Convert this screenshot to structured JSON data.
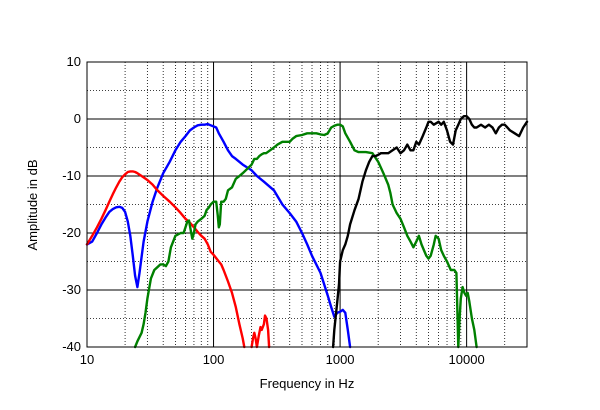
{
  "chart_data": {
    "type": "line",
    "title": "",
    "xlabel": "Frequency  in Hz",
    "ylabel": "Amplitude in dB",
    "x_scale": "log",
    "xlim": [
      10,
      30000
    ],
    "ylim": [
      -40,
      10
    ],
    "x_ticks": [
      10,
      100,
      1000,
      10000
    ],
    "x_tick_labels": [
      "10",
      "100",
      "1000",
      "10000"
    ],
    "y_ticks": [
      10,
      0,
      -10,
      -20,
      -30,
      -40
    ],
    "y_tick_labels": [
      "10",
      "0",
      "-10",
      "-20",
      "-30",
      "-40"
    ],
    "grid": true,
    "legend": "none",
    "series": [
      {
        "color": "#0000ff",
        "points": [
          [
            10,
            -22
          ],
          [
            11,
            -21.5
          ],
          [
            12,
            -20
          ],
          [
            13,
            -18.5
          ],
          [
            14,
            -17.3
          ],
          [
            15,
            -16.3
          ],
          [
            16,
            -15.8
          ],
          [
            17,
            -15.5
          ],
          [
            18,
            -15.4
          ],
          [
            19,
            -15.6
          ],
          [
            20,
            -16.3
          ],
          [
            21,
            -18
          ],
          [
            22,
            -20.5
          ],
          [
            23,
            -24
          ],
          [
            24,
            -27.5
          ],
          [
            25,
            -29.5
          ],
          [
            26,
            -27
          ],
          [
            28,
            -21.5
          ],
          [
            30,
            -18
          ],
          [
            33,
            -14.5
          ],
          [
            36,
            -12
          ],
          [
            40,
            -9.5
          ],
          [
            45,
            -7.5
          ],
          [
            50,
            -5.5
          ],
          [
            55,
            -4
          ],
          [
            60,
            -3
          ],
          [
            65,
            -2
          ],
          [
            70,
            -1.5
          ],
          [
            75,
            -1.1
          ],
          [
            80,
            -1
          ],
          [
            85,
            -1
          ],
          [
            90,
            -0.9
          ],
          [
            95,
            -1.1
          ],
          [
            100,
            -1.3
          ],
          [
            105,
            -1.5
          ],
          [
            110,
            -2.5
          ],
          [
            120,
            -4
          ],
          [
            130,
            -5.5
          ],
          [
            140,
            -6.5
          ],
          [
            150,
            -7
          ],
          [
            170,
            -8
          ],
          [
            200,
            -9
          ],
          [
            220,
            -10
          ],
          [
            250,
            -11
          ],
          [
            300,
            -12.5
          ],
          [
            350,
            -15
          ],
          [
            400,
            -16.5
          ],
          [
            450,
            -18
          ],
          [
            500,
            -20
          ],
          [
            550,
            -22
          ],
          [
            600,
            -24
          ],
          [
            700,
            -27
          ],
          [
            800,
            -31
          ],
          [
            850,
            -33
          ],
          [
            900,
            -34.7
          ],
          [
            950,
            -34
          ],
          [
            1000,
            -33.8
          ],
          [
            1050,
            -33.5
          ],
          [
            1100,
            -34
          ],
          [
            1150,
            -37
          ],
          [
            1200,
            -40
          ]
        ]
      },
      {
        "color": "#ff0000",
        "points": [
          [
            10,
            -22
          ],
          [
            11,
            -20.5
          ],
          [
            12,
            -19
          ],
          [
            13,
            -17.5
          ],
          [
            14,
            -16
          ],
          [
            15,
            -14.5
          ],
          [
            16,
            -13.2
          ],
          [
            17,
            -12
          ],
          [
            18,
            -11
          ],
          [
            19,
            -10.2
          ],
          [
            20,
            -9.7
          ],
          [
            21,
            -9.3
          ],
          [
            22,
            -9.2
          ],
          [
            23,
            -9.2
          ],
          [
            24,
            -9.3
          ],
          [
            25,
            -9.5
          ],
          [
            27,
            -10
          ],
          [
            30,
            -10.7
          ],
          [
            33,
            -11.5
          ],
          [
            36,
            -12.5
          ],
          [
            40,
            -13.5
          ],
          [
            45,
            -14.5
          ],
          [
            50,
            -15.5
          ],
          [
            55,
            -16.5
          ],
          [
            60,
            -17.5
          ],
          [
            65,
            -18.2
          ],
          [
            70,
            -19
          ],
          [
            75,
            -19.8
          ],
          [
            80,
            -20.5
          ],
          [
            85,
            -21
          ],
          [
            90,
            -22
          ],
          [
            95,
            -23.3
          ],
          [
            100,
            -23.8
          ],
          [
            110,
            -25
          ],
          [
            115,
            -25.5
          ],
          [
            120,
            -26.5
          ],
          [
            130,
            -28.5
          ],
          [
            140,
            -30.5
          ],
          [
            150,
            -33
          ],
          [
            160,
            -36
          ],
          [
            170,
            -38.5
          ],
          [
            175,
            -40
          ]
        ]
      },
      {
        "color": "#ff0000",
        "points": [
          [
            200,
            -40
          ],
          [
            205,
            -38.5
          ],
          [
            210,
            -37.5
          ],
          [
            215,
            -38.5
          ],
          [
            220,
            -40
          ],
          [
            228,
            -38
          ],
          [
            235,
            -36.5
          ],
          [
            240,
            -37
          ],
          [
            250,
            -36
          ],
          [
            255,
            -34.5
          ],
          [
            262,
            -35
          ],
          [
            270,
            -37
          ],
          [
            275,
            -40
          ]
        ]
      },
      {
        "color": "#008000",
        "points": [
          [
            24,
            -40
          ],
          [
            25,
            -39
          ],
          [
            27,
            -37.5
          ],
          [
            28,
            -36
          ],
          [
            29,
            -34
          ],
          [
            30,
            -31.5
          ],
          [
            32,
            -28
          ],
          [
            34,
            -26.5
          ],
          [
            36,
            -26
          ],
          [
            38,
            -25.5
          ],
          [
            40,
            -25.5
          ],
          [
            42,
            -25.8
          ],
          [
            44,
            -25
          ],
          [
            46,
            -22.5
          ],
          [
            50,
            -20.5
          ],
          [
            55,
            -20
          ],
          [
            58,
            -20
          ],
          [
            60,
            -19
          ],
          [
            62,
            -18
          ],
          [
            64,
            -17.8
          ],
          [
            66,
            -19.5
          ],
          [
            68,
            -21
          ],
          [
            70,
            -20
          ],
          [
            72,
            -18.5
          ],
          [
            75,
            -18
          ],
          [
            80,
            -17.5
          ],
          [
            85,
            -17
          ],
          [
            88,
            -16
          ],
          [
            92,
            -15.5
          ],
          [
            95,
            -15
          ],
          [
            100,
            -14.5
          ],
          [
            105,
            -14.5
          ],
          [
            108,
            -17
          ],
          [
            110,
            -19
          ],
          [
            112,
            -18.5
          ],
          [
            115,
            -14.5
          ],
          [
            120,
            -14.5
          ],
          [
            125,
            -14
          ],
          [
            130,
            -12.5
          ],
          [
            140,
            -12
          ],
          [
            150,
            -10.5
          ],
          [
            160,
            -10
          ],
          [
            170,
            -9.5
          ],
          [
            180,
            -9
          ],
          [
            190,
            -8.5
          ],
          [
            200,
            -8
          ],
          [
            210,
            -7
          ],
          [
            220,
            -7
          ],
          [
            230,
            -6.5
          ],
          [
            240,
            -6.2
          ],
          [
            250,
            -6
          ],
          [
            260,
            -6
          ],
          [
            280,
            -5.5
          ],
          [
            300,
            -5
          ],
          [
            320,
            -4.5
          ],
          [
            350,
            -4
          ],
          [
            380,
            -4
          ],
          [
            400,
            -4
          ],
          [
            420,
            -3.5
          ],
          [
            450,
            -3
          ],
          [
            500,
            -2.8
          ],
          [
            550,
            -2.5
          ],
          [
            600,
            -2.5
          ],
          [
            650,
            -2.5
          ],
          [
            700,
            -2.7
          ],
          [
            750,
            -2.8
          ],
          [
            800,
            -2.5
          ],
          [
            850,
            -1.5
          ],
          [
            900,
            -1.2
          ],
          [
            950,
            -1
          ],
          [
            1000,
            -1
          ],
          [
            1050,
            -1.3
          ],
          [
            1100,
            -2.5
          ],
          [
            1200,
            -4
          ],
          [
            1300,
            -5.5
          ],
          [
            1400,
            -5.8
          ],
          [
            1500,
            -5.8
          ],
          [
            1600,
            -5.8
          ],
          [
            1800,
            -6
          ],
          [
            2000,
            -7.5
          ],
          [
            2200,
            -9.5
          ],
          [
            2400,
            -11.5
          ],
          [
            2500,
            -13
          ],
          [
            2600,
            -15
          ],
          [
            2800,
            -16.5
          ],
          [
            3000,
            -17.5
          ],
          [
            3200,
            -19
          ],
          [
            3400,
            -20.5
          ],
          [
            3600,
            -21.5
          ],
          [
            3800,
            -22.5
          ],
          [
            4000,
            -21.5
          ],
          [
            4200,
            -20.5
          ],
          [
            4400,
            -22
          ],
          [
            4600,
            -23
          ],
          [
            4800,
            -24
          ],
          [
            5000,
            -24.5
          ],
          [
            5200,
            -24
          ],
          [
            5500,
            -22
          ],
          [
            5700,
            -20.5
          ],
          [
            6000,
            -21
          ],
          [
            6300,
            -23
          ],
          [
            6600,
            -24
          ],
          [
            7000,
            -25
          ],
          [
            7500,
            -26.5
          ],
          [
            8000,
            -26.5
          ],
          [
            8300,
            -27
          ],
          [
            8600,
            -40
          ],
          [
            8800,
            -35
          ],
          [
            9000,
            -31.5
          ],
          [
            9300,
            -29.5
          ],
          [
            9600,
            -30.5
          ],
          [
            9900,
            -31
          ],
          [
            10200,
            -30.5
          ],
          [
            10500,
            -32
          ],
          [
            11000,
            -35
          ],
          [
            11500,
            -37
          ],
          [
            12000,
            -40
          ]
        ]
      },
      {
        "color": "#000000",
        "points": [
          [
            880,
            -40
          ],
          [
            900,
            -37
          ],
          [
            920,
            -35
          ],
          [
            950,
            -32
          ],
          [
            980,
            -29
          ],
          [
            1000,
            -25
          ],
          [
            1050,
            -23
          ],
          [
            1100,
            -22
          ],
          [
            1150,
            -20.5
          ],
          [
            1200,
            -18.5
          ],
          [
            1300,
            -16
          ],
          [
            1400,
            -14
          ],
          [
            1500,
            -11
          ],
          [
            1600,
            -9
          ],
          [
            1700,
            -7.5
          ],
          [
            1800,
            -6.5
          ],
          [
            1900,
            -6.5
          ],
          [
            2000,
            -6.3
          ],
          [
            2100,
            -6
          ],
          [
            2200,
            -6
          ],
          [
            2400,
            -6
          ],
          [
            2600,
            -5.5
          ],
          [
            2800,
            -5
          ],
          [
            3000,
            -6
          ],
          [
            3200,
            -5.5
          ],
          [
            3400,
            -4.5
          ],
          [
            3600,
            -5.5
          ],
          [
            3800,
            -5.5
          ],
          [
            4000,
            -4
          ],
          [
            4200,
            -4.5
          ],
          [
            4500,
            -3
          ],
          [
            4800,
            -1.5
          ],
          [
            5000,
            -0.5
          ],
          [
            5200,
            -0.5
          ],
          [
            5500,
            -1
          ],
          [
            6000,
            -0.5
          ],
          [
            6300,
            -1
          ],
          [
            6600,
            -0.5
          ],
          [
            7000,
            -2
          ],
          [
            7400,
            -4
          ],
          [
            7800,
            -4.5
          ],
          [
            8200,
            -2
          ],
          [
            8600,
            -1
          ],
          [
            9000,
            0
          ],
          [
            9500,
            0.5
          ],
          [
            10000,
            0.5
          ],
          [
            10500,
            0
          ],
          [
            11000,
            -1
          ],
          [
            11500,
            -1.5
          ],
          [
            12000,
            -1.5
          ],
          [
            13000,
            -1
          ],
          [
            14000,
            -1.5
          ],
          [
            15000,
            -1
          ],
          [
            16000,
            -1.5
          ],
          [
            17000,
            -2.5
          ],
          [
            18000,
            -1.5
          ],
          [
            19000,
            -1
          ],
          [
            20000,
            -1
          ],
          [
            21000,
            -1.5
          ],
          [
            22000,
            -2
          ],
          [
            24000,
            -2.5
          ],
          [
            26000,
            -3
          ],
          [
            28000,
            -1.5
          ],
          [
            30000,
            -0.5
          ]
        ]
      }
    ]
  }
}
